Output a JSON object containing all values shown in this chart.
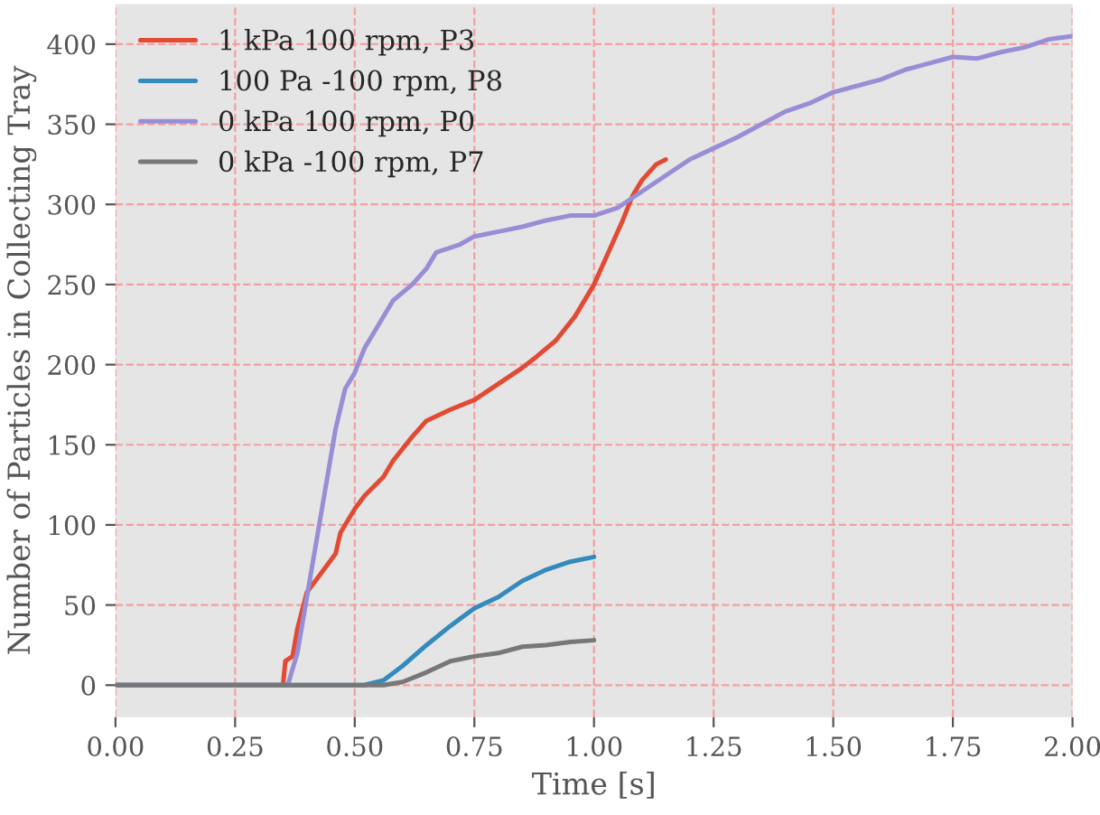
{
  "chart_data": {
    "type": "line",
    "xlabel": "Time [s]",
    "ylabel": "Number of Particles in Collecting Tray",
    "xlim": [
      0,
      2
    ],
    "ylim": [
      -20,
      425
    ],
    "xticks": [
      {
        "value": 0,
        "label": "0.00"
      },
      {
        "value": 0.25,
        "label": "0.25"
      },
      {
        "value": 0.5,
        "label": "0.50"
      },
      {
        "value": 0.75,
        "label": "0.75"
      },
      {
        "value": 1,
        "label": "1.00"
      },
      {
        "value": 1.25,
        "label": "1.25"
      },
      {
        "value": 1.5,
        "label": "1.50"
      },
      {
        "value": 1.75,
        "label": "1.75"
      },
      {
        "value": 2,
        "label": "2.00"
      }
    ],
    "yticks": [
      0,
      50,
      100,
      150,
      200,
      250,
      300,
      350,
      400
    ],
    "grid": true,
    "legend": "top left",
    "line_style": "solid",
    "marker": "none",
    "series": [
      {
        "name": "1 kPa 100 rpm, P3",
        "color": "#e24a33",
        "x": [
          0,
          0.35,
          0.355,
          0.37,
          0.38,
          0.4,
          0.43,
          0.46,
          0.47,
          0.5,
          0.52,
          0.56,
          0.58,
          0.62,
          0.65,
          0.7,
          0.75,
          0.8,
          0.85,
          0.88,
          0.92,
          0.96,
          1.0,
          1.03,
          1.06,
          1.08,
          1.1,
          1.13,
          1.15
        ],
        "values": [
          0,
          0,
          15,
          18,
          35,
          58,
          70,
          82,
          95,
          110,
          118,
          130,
          140,
          155,
          165,
          172,
          178,
          188,
          198,
          205,
          215,
          230,
          250,
          270,
          290,
          305,
          315,
          325,
          328
        ]
      },
      {
        "name": "100 Pa -100 rpm, P8",
        "color": "#348abd",
        "x": [
          0,
          0.52,
          0.56,
          0.6,
          0.65,
          0.7,
          0.75,
          0.8,
          0.85,
          0.9,
          0.95,
          1.0
        ],
        "values": [
          0,
          0,
          3,
          12,
          25,
          37,
          48,
          55,
          65,
          72,
          77,
          80
        ]
      },
      {
        "name": "0 kPa 100 rpm, P0",
        "color": "#988ed5",
        "x": [
          0,
          0.35,
          0.36,
          0.38,
          0.4,
          0.42,
          0.44,
          0.46,
          0.48,
          0.5,
          0.52,
          0.55,
          0.58,
          0.62,
          0.65,
          0.67,
          0.72,
          0.75,
          0.8,
          0.85,
          0.9,
          0.95,
          1.0,
          1.05,
          1.1,
          1.15,
          1.2,
          1.25,
          1.3,
          1.35,
          1.4,
          1.45,
          1.5,
          1.55,
          1.6,
          1.65,
          1.7,
          1.75,
          1.8,
          1.85,
          1.9,
          1.95,
          2.0
        ],
        "values": [
          0,
          0,
          0,
          20,
          55,
          90,
          125,
          160,
          185,
          195,
          210,
          225,
          240,
          250,
          260,
          270,
          275,
          280,
          283,
          286,
          290,
          293,
          293,
          298,
          308,
          318,
          328,
          335,
          342,
          350,
          358,
          363,
          370,
          374,
          378,
          384,
          388,
          392,
          391,
          395,
          398,
          403,
          405
        ]
      },
      {
        "name": "0 kPa -100 rpm, P7",
        "color": "#777777",
        "x": [
          0,
          0.56,
          0.6,
          0.65,
          0.7,
          0.75,
          0.8,
          0.85,
          0.9,
          0.95,
          1.0
        ],
        "values": [
          0,
          0,
          2,
          8,
          15,
          18,
          20,
          24,
          25,
          27,
          28
        ]
      }
    ]
  }
}
